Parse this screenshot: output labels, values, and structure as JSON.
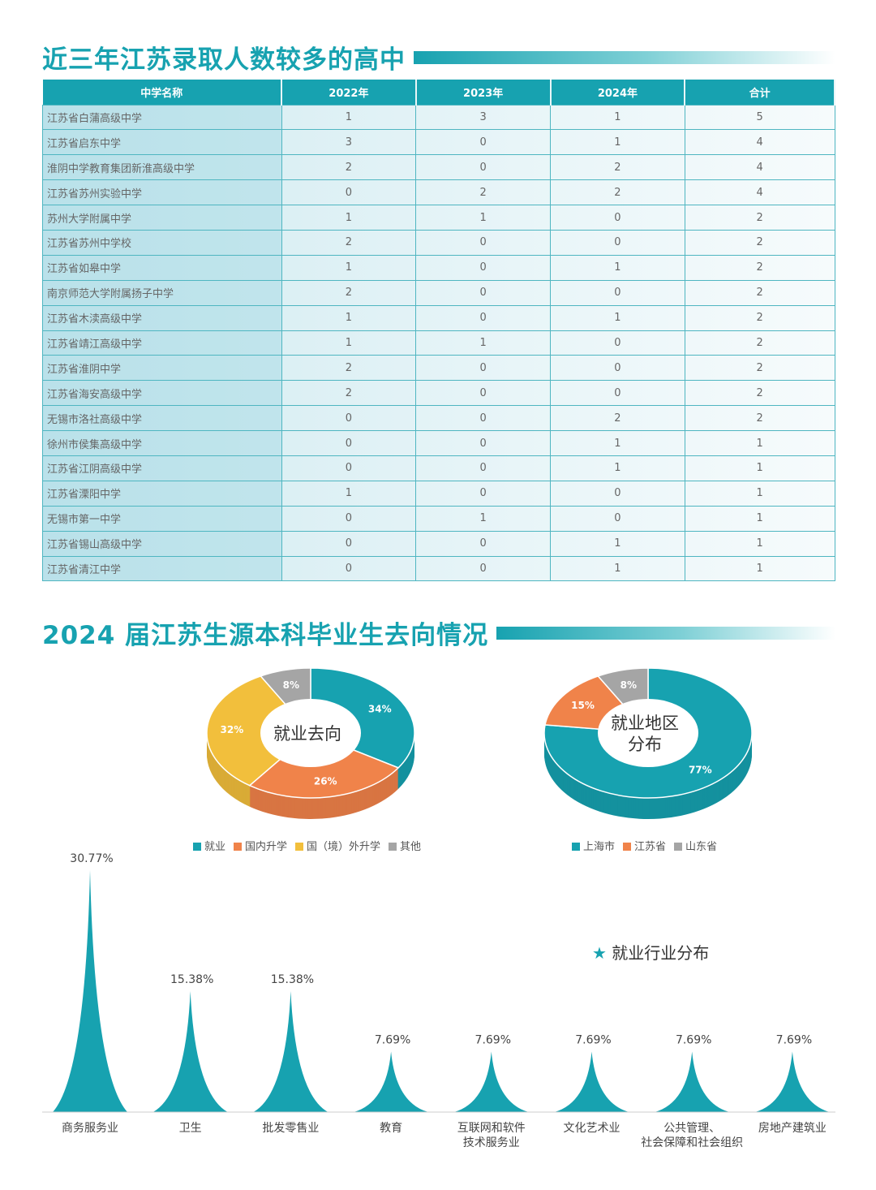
{
  "section1": {
    "title": "近三年江苏录取人数较多的高中"
  },
  "table": {
    "headers": [
      "中学名称",
      "2022年",
      "2023年",
      "2024年",
      "合计"
    ],
    "rows": [
      [
        "江苏省白蒲高级中学",
        "1",
        "3",
        "1",
        "5"
      ],
      [
        "江苏省启东中学",
        "3",
        "0",
        "1",
        "4"
      ],
      [
        "淮阴中学教育集团新淮高级中学",
        "2",
        "0",
        "2",
        "4"
      ],
      [
        "江苏省苏州实验中学",
        "0",
        "2",
        "2",
        "4"
      ],
      [
        "苏州大学附属中学",
        "1",
        "1",
        "0",
        "2"
      ],
      [
        "江苏省苏州中学校",
        "2",
        "0",
        "0",
        "2"
      ],
      [
        "江苏省如皋中学",
        "1",
        "0",
        "1",
        "2"
      ],
      [
        "南京师范大学附属扬子中学",
        "2",
        "0",
        "0",
        "2"
      ],
      [
        "江苏省木渎高级中学",
        "1",
        "0",
        "1",
        "2"
      ],
      [
        "江苏省靖江高级中学",
        "1",
        "1",
        "0",
        "2"
      ],
      [
        "江苏省淮阴中学",
        "2",
        "0",
        "0",
        "2"
      ],
      [
        "江苏省海安高级中学",
        "2",
        "0",
        "0",
        "2"
      ],
      [
        "无锡市洛社高级中学",
        "0",
        "0",
        "2",
        "2"
      ],
      [
        "徐州市侯集高级中学",
        "0",
        "0",
        "1",
        "1"
      ],
      [
        "江苏省江阴高级中学",
        "0",
        "0",
        "1",
        "1"
      ],
      [
        "江苏省溧阳中学",
        "1",
        "0",
        "0",
        "1"
      ],
      [
        "无锡市第一中学",
        "0",
        "1",
        "0",
        "1"
      ],
      [
        "江苏省锡山高级中学",
        "0",
        "0",
        "1",
        "1"
      ],
      [
        "江苏省清江中学",
        "0",
        "0",
        "1",
        "1"
      ]
    ]
  },
  "section2": {
    "title": "2024 届江苏生源本科毕业生去向情况"
  },
  "colors": {
    "teal": "#17a2b0",
    "orange": "#f0834a",
    "yellow": "#f2bf3c",
    "gray": "#a5a5a5"
  },
  "chart_data": [
    {
      "type": "pie",
      "title": "就业去向",
      "categories": [
        "就业",
        "国内升学",
        "国(境)外升学",
        "其他"
      ],
      "legend_labels": [
        "就业",
        "国内升学",
        "国（境）外升学",
        "其他"
      ],
      "values": [
        34,
        26,
        32,
        8
      ],
      "labels": [
        "34%",
        "26%",
        "32%",
        "8%"
      ],
      "colors": [
        "#17a2b0",
        "#f0834a",
        "#f2bf3c",
        "#a5a5a5"
      ]
    },
    {
      "type": "pie",
      "title_lines": [
        "就业地区",
        "分布"
      ],
      "categories": [
        "上海市",
        "江苏省",
        "山东省"
      ],
      "values": [
        77,
        15,
        8
      ],
      "labels": [
        "77%",
        "15%",
        "8%"
      ],
      "colors": [
        "#17a2b0",
        "#f0834a",
        "#a5a5a5"
      ]
    },
    {
      "type": "bar",
      "title": "就业行业分布",
      "categories": [
        "商务服务业",
        "卫生",
        "批发零售业",
        "教育",
        "互联网和软件技术服务业",
        "文化艺术业",
        "公共管理、社会保障和社会组织",
        "房地产建筑业"
      ],
      "category_lines": [
        [
          "商务服务业"
        ],
        [
          "卫生"
        ],
        [
          "批发零售业"
        ],
        [
          "教育"
        ],
        [
          "互联网和软件",
          "技术服务业"
        ],
        [
          "文化艺术业"
        ],
        [
          "公共管理、",
          "社会保障和社会组织"
        ],
        [
          "房地产建筑业"
        ]
      ],
      "values": [
        30.77,
        15.38,
        15.38,
        7.69,
        7.69,
        7.69,
        7.69,
        7.69
      ],
      "labels": [
        "30.77%",
        "15.38%",
        "15.38%",
        "7.69%",
        "7.69%",
        "7.69%",
        "7.69%",
        "7.69%"
      ],
      "unit": "%"
    }
  ]
}
